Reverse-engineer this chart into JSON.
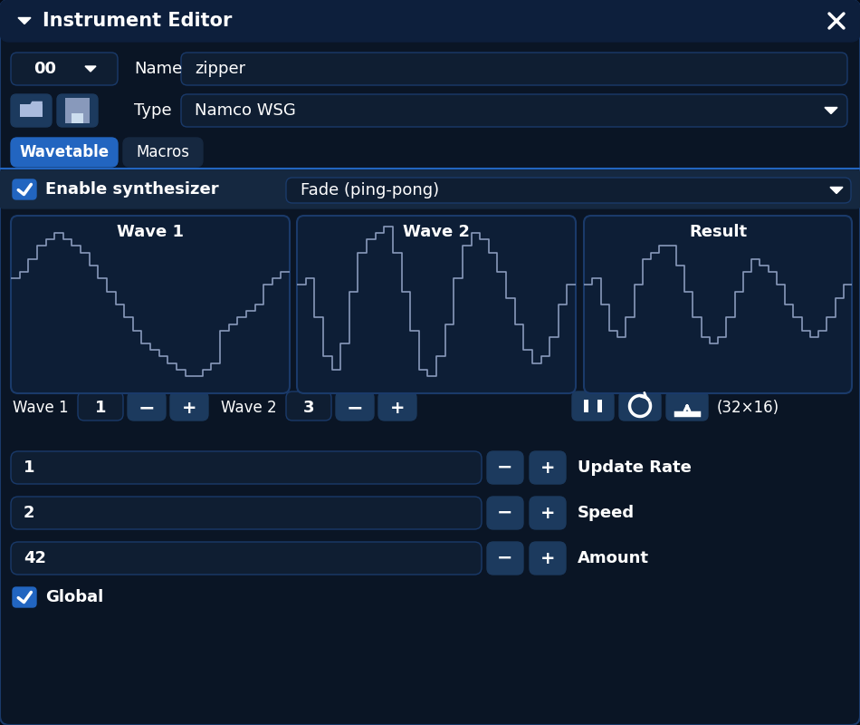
{
  "bg_color": "#050a14",
  "panel_bg": "#0a1525",
  "title_bg": "#0d1f3c",
  "mid_blue": "#152840",
  "btn_blue": "#1c3a5e",
  "btn_dark": "#0f1e32",
  "active_tab": "#2265c0",
  "inactive_tab": "#162840",
  "wave_bg": "#0d1e36",
  "check_blue": "#2265c0",
  "enable_row_bg": "#152840",
  "text_white": "#ffffff",
  "wave_line": "#8899bb",
  "border_color": "#1a3a6a",
  "wave1_data": [
    4,
    5,
    7,
    9,
    10,
    11,
    10,
    9,
    8,
    6,
    4,
    2,
    0,
    -2,
    -4,
    -6,
    -7,
    -8,
    -9,
    -10,
    -11,
    -11,
    -10,
    -9,
    -4,
    -3,
    -2,
    -1,
    0,
    3,
    4,
    5
  ],
  "wave2_data": [
    3,
    4,
    -2,
    -8,
    -10,
    -6,
    2,
    8,
    10,
    11,
    12,
    8,
    2,
    -4,
    -10,
    -11,
    -8,
    -3,
    4,
    9,
    11,
    10,
    8,
    5,
    1,
    -3,
    -7,
    -9,
    -8,
    -5,
    0,
    3
  ],
  "result_data": [
    3,
    4,
    0,
    -4,
    -5,
    -2,
    3,
    7,
    8,
    9,
    9,
    6,
    2,
    -2,
    -5,
    -6,
    -5,
    -2,
    2,
    5,
    7,
    6,
    5,
    3,
    0,
    -2,
    -4,
    -5,
    -4,
    -2,
    1,
    3
  ],
  "title": "Instrument Editor",
  "instrument_num": "00",
  "name_label": "Name",
  "name_value": "zipper",
  "type_label": "Type",
  "type_value": "Namco WSG",
  "tab1": "Wavetable",
  "tab2": "Macros",
  "enable_text": "Enable synthesizer",
  "fade_text": "Fade (ping-pong)",
  "wave1_label": "Wave 1",
  "wave2_label": "Wave 2",
  "result_label": "Result",
  "wave1_num": "1",
  "wave2_num": "3",
  "size_text": "(32×16)",
  "update_rate_label": "Update Rate",
  "update_rate_val": "1",
  "speed_label": "Speed",
  "speed_val": "2",
  "amount_label": "Amount",
  "amount_val": "42",
  "global_text": "Global"
}
